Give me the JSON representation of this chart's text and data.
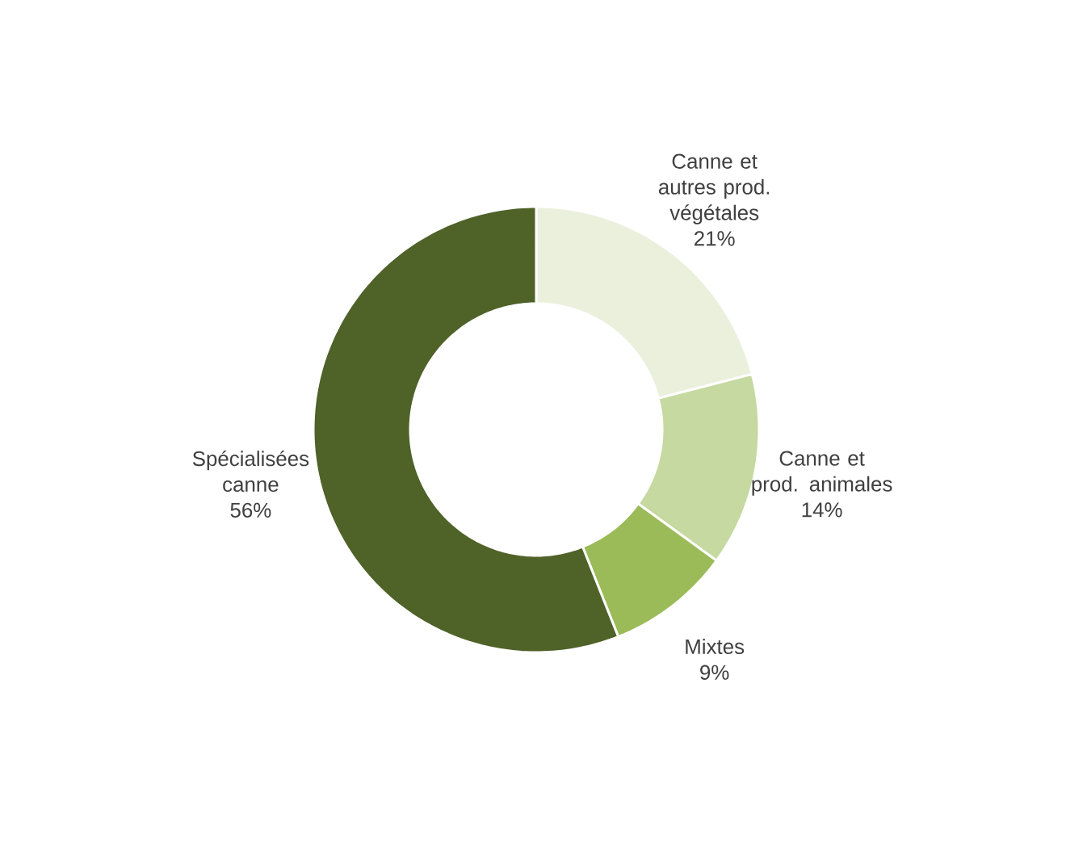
{
  "chart_data": {
    "type": "donut",
    "categories": [
      "Canne et autres prod. végétales",
      "Canne et prod. animales",
      "Mixtes",
      "Spécialisées canne"
    ],
    "values": [
      21,
      14,
      9,
      56
    ],
    "value_labels": [
      "21%",
      "14%",
      "9%",
      "56%"
    ],
    "colors": [
      "#ebf0dd",
      "#c5d9a0",
      "#9bbb59",
      "#4f6228"
    ]
  }
}
